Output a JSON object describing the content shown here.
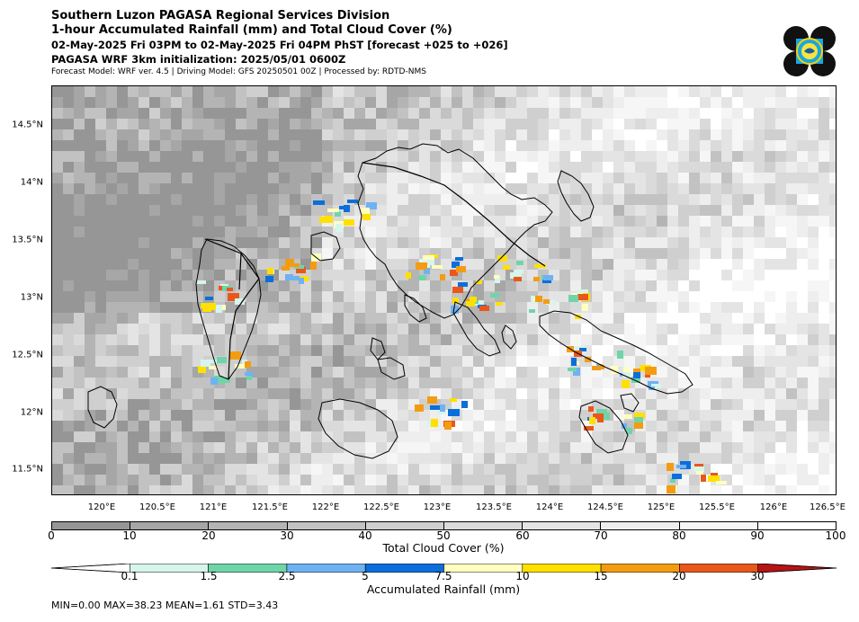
{
  "title": {
    "line1": "Southern Luzon PAGASA Regional Services Division",
    "line2": "1-hour Accumulated Rainfall (mm) and Total Cloud Cover (%)",
    "line3": "02-May-2025 Fri 03PM to 02-May-2025 Fri 04PM PhST [forecast +025 to +026]",
    "line4": "PAGASA WRF 3km initialization: 2025/05/01 0600Z",
    "line5": "Forecast Model: WRF ver. 4.5 | Driving Model: GFS 20250501 00Z | Processed by: RDTD-NMS"
  },
  "map": {
    "lat_labels": [
      "14.5°N",
      "14°N",
      "13.5°N",
      "13°N",
      "12.5°N",
      "12°N",
      "11.5°N"
    ],
    "lon_labels": [
      "120°E",
      "120.5°E",
      "121°E",
      "121.5°E",
      "122°E",
      "122.5°E",
      "123°E",
      "123.5°E",
      "124°E",
      "124.5°E",
      "125°E",
      "125.5°E",
      "126°E",
      "126.5°E"
    ]
  },
  "cloud_colorbar": {
    "ticks": [
      "0",
      "10",
      "20",
      "30",
      "40",
      "50",
      "60",
      "70",
      "80",
      "90",
      "100"
    ],
    "label": "Total Cloud Cover (%)",
    "colors": [
      "#969696",
      "#a6a6a6",
      "#b4b4b4",
      "#c2c2c2",
      "#cfcfcf",
      "#dadada",
      "#e4e4e4",
      "#eeeeee",
      "#f6f6f6",
      "#ffffff"
    ]
  },
  "rain_colorbar": {
    "ticks": [
      "0.1",
      "1.5",
      "2.5",
      "5",
      "7.5",
      "10",
      "15",
      "20",
      "30"
    ],
    "label": "Accumulated Rainfall (mm)",
    "colors": [
      "#ffffff",
      "#d6f5ec",
      "#6fd5a8",
      "#6fb2f2",
      "#0a6fdb",
      "#ffffc0",
      "#ffe000",
      "#f39c12",
      "#e8581a",
      "#b81414"
    ]
  },
  "stats": "MIN=0.00   MAX=38.23   MEAN=1.61   STD=3.43"
}
